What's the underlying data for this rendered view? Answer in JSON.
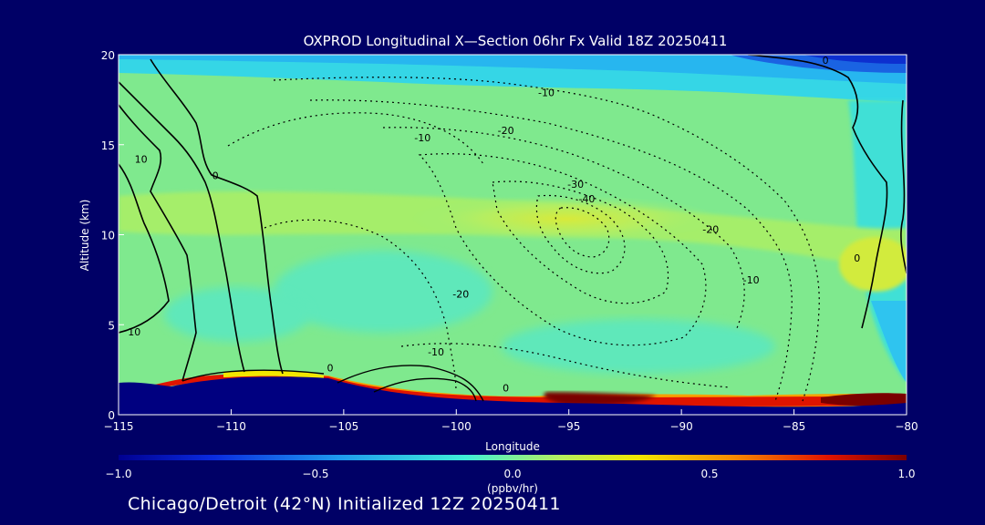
{
  "chart_data": {
    "type": "heatmap",
    "title": "OXPROD Longitudinal X—Section 06hr  Fx Valid 18Z 20250411",
    "xlabel": "Longitude",
    "ylabel": "Altitude (km)",
    "xlim": [
      -115,
      -80
    ],
    "ylim": [
      0,
      20
    ],
    "x_ticks": [
      -115,
      -110,
      -105,
      -100,
      -95,
      -90,
      -85,
      -80
    ],
    "x_tick_labels": [
      "−115",
      "−110",
      "−105",
      "−100",
      "−95",
      "−90",
      "−85",
      "−80"
    ],
    "y_ticks": [
      0,
      5,
      10,
      15,
      20
    ],
    "y_tick_labels": [
      "0",
      "5",
      "10",
      "15",
      "20"
    ],
    "colorbar": {
      "min": -1.0,
      "max": 1.0,
      "ticks": [
        -1.0,
        -0.5,
        0.0,
        0.5,
        1.0
      ],
      "tick_labels": [
        "−1.0",
        "−0.5",
        "0.0",
        "0.5",
        "1.0"
      ],
      "units": "(ppbv/hr)",
      "colors": [
        "#000090",
        "#0a2be0",
        "#1e9bef",
        "#3ff0d8",
        "#b5f060",
        "#f2e600",
        "#f78a00",
        "#e01400",
        "#7a0000"
      ]
    },
    "field_summary": {
      "background_value": 0.1,
      "upper_level_max": {
        "lon": -94.5,
        "alt": 10.9,
        "value": 0.28
      },
      "boundary_layer_max_value": 1.0,
      "upper_right_min_value": -0.7
    },
    "contour_labels": [
      {
        "text": "10",
        "lon": -114,
        "alt": 14
      },
      {
        "text": "0",
        "lon": -110.7,
        "alt": 13.1
      },
      {
        "text": "10",
        "lon": -114.3,
        "alt": 4.4
      },
      {
        "text": "-10",
        "lon": -96,
        "alt": 17.7
      },
      {
        "text": "-10",
        "lon": -101.5,
        "alt": 15.2
      },
      {
        "text": "0",
        "lon": -83.6,
        "alt": 19.5
      },
      {
        "text": "-20",
        "lon": -97.8,
        "alt": 15.6
      },
      {
        "text": "-30",
        "lon": -94.7,
        "alt": 12.6
      },
      {
        "text": "-40",
        "lon": -94.2,
        "alt": 11.8
      },
      {
        "text": "-20",
        "lon": -88.7,
        "alt": 10.1
      },
      {
        "text": "0",
        "lon": -82.2,
        "alt": 8.5
      },
      {
        "text": "-10",
        "lon": -86.9,
        "alt": 7.3
      },
      {
        "text": "-20",
        "lon": -99.8,
        "alt": 6.5
      },
      {
        "text": "-10",
        "lon": -100.9,
        "alt": 3.3
      },
      {
        "text": "0",
        "lon": -105.6,
        "alt": 2.4
      },
      {
        "text": "0",
        "lon": -97.8,
        "alt": 1.3
      }
    ]
  },
  "caption": "Chicago/Detroit (42°N) Initialized 12Z 20250411"
}
